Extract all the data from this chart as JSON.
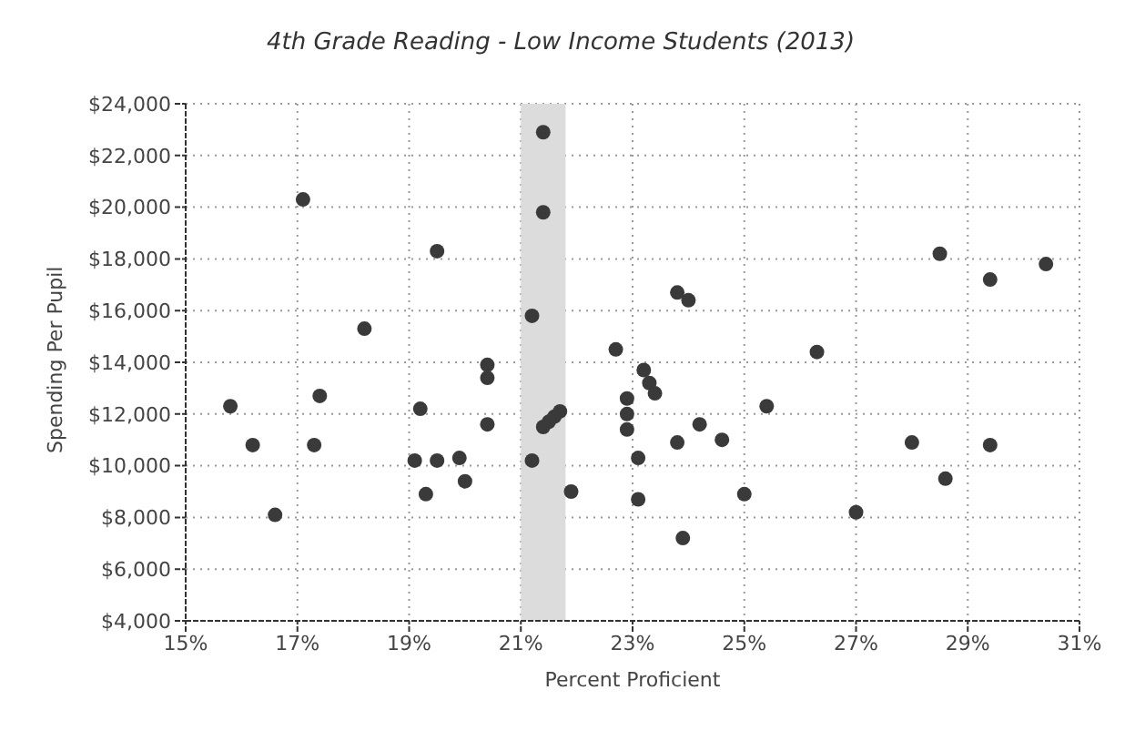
{
  "chart_data": {
    "type": "scatter",
    "title": "4th Grade Reading - Low Income Students (2013)",
    "xlabel": "Percent Proficient",
    "ylabel": "Spending Per Pupil",
    "x": [
      15.8,
      16.2,
      17.4,
      17.3,
      16.6,
      19.2,
      19.1,
      19.5,
      19.9,
      19.3,
      20.0,
      20.4,
      20.4,
      20.4,
      21.2,
      21.4,
      21.5,
      21.6,
      21.7,
      17.1,
      19.5,
      18.2,
      21.4,
      21.4,
      21.2,
      23.8,
      24.0,
      22.7,
      23.2,
      26.3,
      28.5,
      29.4,
      30.4,
      23.3,
      23.4,
      21.9,
      22.9,
      22.9,
      22.9,
      23.1,
      23.1,
      23.8,
      24.2,
      24.6,
      23.9,
      25.4,
      25.0,
      27.0,
      28.0,
      28.6,
      29.4
    ],
    "series": [
      {
        "color": "#3a3a3a",
        "values": [
          12300,
          10800,
          12700,
          10800,
          8100,
          12200,
          10200,
          10200,
          10300,
          8900,
          9400,
          11600,
          13900,
          13400,
          10200,
          11500,
          11700,
          11900,
          12100,
          20300,
          18300,
          15300,
          22900,
          19800,
          15800,
          16700,
          16400,
          14500,
          13700,
          14400,
          18200,
          17200,
          17800,
          13200,
          12800,
          9000,
          12600,
          12000,
          11400,
          10300,
          8700,
          10900,
          11600,
          11000,
          7200,
          12300,
          8900,
          8200,
          10900,
          9500,
          10800
        ]
      }
    ],
    "xlim": [
      15,
      31
    ],
    "xticks": [
      {
        "value": 15,
        "label": "15%"
      },
      {
        "value": 17,
        "label": "17%"
      },
      {
        "value": 19,
        "label": "19%"
      },
      {
        "value": 21,
        "label": "21%"
      },
      {
        "value": 23,
        "label": "23%"
      },
      {
        "value": 25,
        "label": "25%"
      },
      {
        "value": 27,
        "label": "27%"
      },
      {
        "value": 29,
        "label": "29%"
      },
      {
        "value": 31,
        "label": "31%"
      }
    ],
    "ylim": [
      4000,
      24000
    ],
    "yticks": [
      {
        "value": 4000,
        "label": "$4,000"
      },
      {
        "value": 6000,
        "label": "$6,000"
      },
      {
        "value": 8000,
        "label": "$8,000"
      },
      {
        "value": 10000,
        "label": "$10,000"
      },
      {
        "value": 12000,
        "label": "$12,000"
      },
      {
        "value": 14000,
        "label": "$14,000"
      },
      {
        "value": 16000,
        "label": "$16,000"
      },
      {
        "value": 18000,
        "label": "$18,000"
      },
      {
        "value": 20000,
        "label": "$20,000"
      },
      {
        "value": 22000,
        "label": "$22,000"
      },
      {
        "value": 24000,
        "label": "$24,000"
      }
    ],
    "bands": [
      {
        "axis": "x",
        "from": 21,
        "to": 21.8,
        "color": "#dcdcdc"
      }
    ],
    "grid": true,
    "marker": "circle"
  }
}
